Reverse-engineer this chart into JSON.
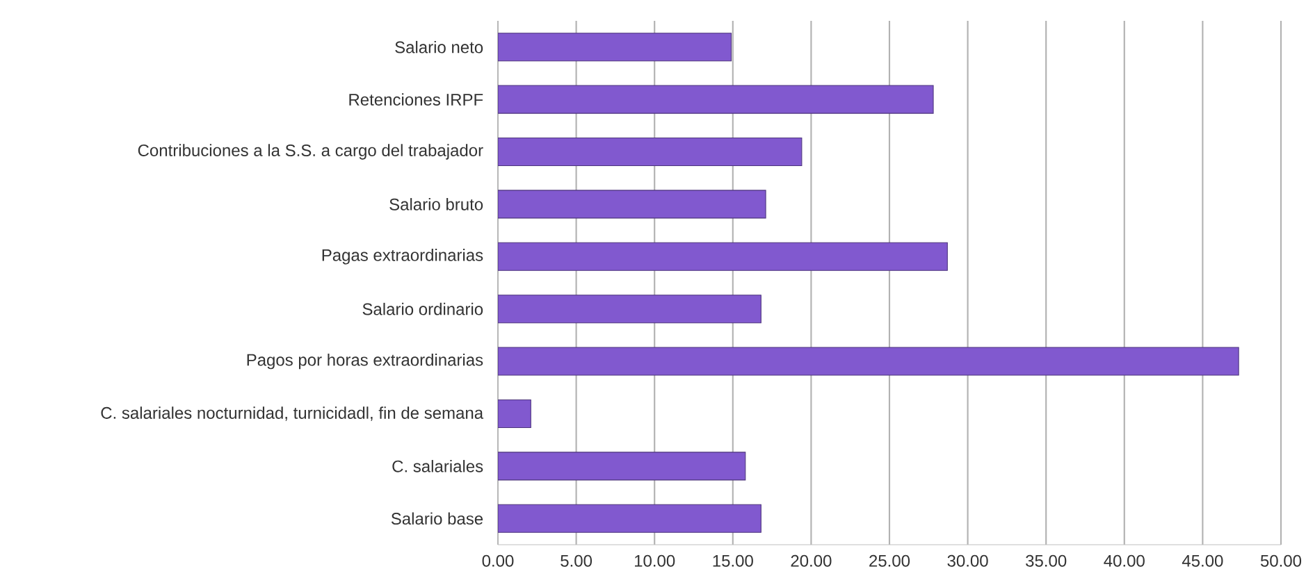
{
  "chart_data": {
    "type": "bar",
    "orientation": "horizontal",
    "categories": [
      "Salario neto",
      "Retenciones IRPF",
      "Contribuciones a la S.S. a cargo del trabajador",
      "Salario bruto",
      "Pagas extraordinarias",
      "Salario ordinario",
      "Pagos por horas extraordinarias",
      "C. salariales nocturnidad, turnicidadl, fin de semana",
      "C. salariales",
      "Salario base"
    ],
    "values": [
      14.9,
      27.8,
      19.4,
      17.1,
      28.7,
      16.8,
      47.3,
      2.1,
      15.8,
      16.8
    ],
    "color": "#8159cf",
    "xlim": [
      0,
      50
    ],
    "xticks": [
      {
        "value": 0,
        "label": "0.00"
      },
      {
        "value": 5,
        "label": "5.00"
      },
      {
        "value": 10,
        "label": "10.00"
      },
      {
        "value": 15,
        "label": "15.00"
      },
      {
        "value": 20,
        "label": "20.00"
      },
      {
        "value": 25,
        "label": "25.00"
      },
      {
        "value": 30,
        "label": "30.00"
      },
      {
        "value": 35,
        "label": "35.00"
      },
      {
        "value": 40,
        "label": "40.00"
      },
      {
        "value": 45,
        "label": "45.00"
      },
      {
        "value": 50,
        "label": "50.00"
      }
    ],
    "grid": "x"
  }
}
